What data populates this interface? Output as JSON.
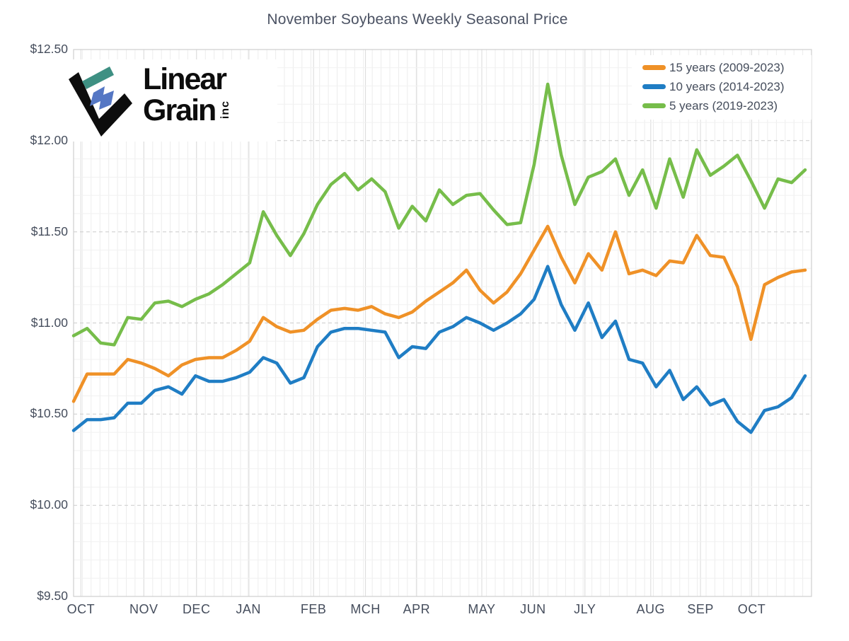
{
  "title": "November Soybeans Weekly Seasonal Price",
  "logo": {
    "word1": "Linear",
    "word2": "Grain",
    "suffix": "inc"
  },
  "colors": {
    "text": "#454d5c",
    "grid_minor_v": "#ececec",
    "grid_month_v": "#dadada",
    "grid_minor_h": "#f1f1f1",
    "grid_major_h": "#cccccc",
    "plot_border": "#cfcfcf",
    "logo_black": "#0d0d0d",
    "logo_teal": "#3e9083",
    "logo_blue": "#5577c4"
  },
  "legend": {
    "items": [
      {
        "label": "15 years (2009-2023)",
        "color": "#ef9127"
      },
      {
        "label": "10 years (2014-2023)",
        "color": "#1f7dc4"
      },
      {
        "label": "5 years (2019-2023)",
        "color": "#76bd4a"
      }
    ]
  },
  "chart_data": {
    "type": "line",
    "title": "November Soybeans Weekly Seasonal Price",
    "x_unit": "week",
    "n_points": 55,
    "ylim": [
      9.5,
      12.5
    ],
    "minor_y_step": 0.1,
    "grid": true,
    "legend_position": "top-right",
    "y_ticks": [
      {
        "label": "$12.50",
        "value": 12.5
      },
      {
        "label": "$12.00",
        "value": 12.0
      },
      {
        "label": "$11.50",
        "value": 11.5
      },
      {
        "label": "$11.00",
        "value": 11.0
      },
      {
        "label": "$10.50",
        "value": 10.5
      },
      {
        "label": "$10.00",
        "value": 10.0
      },
      {
        "label": "$9.50",
        "value": 9.5
      }
    ],
    "x_ticks": [
      {
        "label": "OCT",
        "pos": 0.01
      },
      {
        "label": "NOV",
        "pos": 0.096
      },
      {
        "label": "DEC",
        "pos": 0.168
      },
      {
        "label": "JAN",
        "pos": 0.239
      },
      {
        "label": "FEB",
        "pos": 0.328
      },
      {
        "label": "MCH",
        "pos": 0.399
      },
      {
        "label": "APR",
        "pos": 0.469
      },
      {
        "label": "MAY",
        "pos": 0.558
      },
      {
        "label": "JUN",
        "pos": 0.628
      },
      {
        "label": "JLY",
        "pos": 0.699
      },
      {
        "label": "AUG",
        "pos": 0.789
      },
      {
        "label": "SEP",
        "pos": 0.857
      },
      {
        "label": "OCT",
        "pos": 0.927
      }
    ],
    "series": [
      {
        "name": "15 years (2009-2023)",
        "color": "#ef9127",
        "values": [
          10.57,
          10.72,
          10.72,
          10.72,
          10.8,
          10.78,
          10.75,
          10.71,
          10.77,
          10.8,
          10.81,
          10.81,
          10.85,
          10.9,
          11.03,
          10.98,
          10.95,
          10.96,
          11.02,
          11.07,
          11.08,
          11.07,
          11.09,
          11.05,
          11.03,
          11.06,
          11.12,
          11.17,
          11.22,
          11.29,
          11.18,
          11.11,
          11.17,
          11.27,
          11.4,
          11.53,
          11.36,
          11.22,
          11.38,
          11.29,
          11.5,
          11.27,
          11.29,
          11.26,
          11.34,
          11.33,
          11.48,
          11.37,
          11.36,
          11.2,
          10.91,
          11.21,
          11.25,
          11.28,
          11.29
        ]
      },
      {
        "name": "10 years (2014-2023)",
        "color": "#1f7dc4",
        "values": [
          10.41,
          10.47,
          10.47,
          10.48,
          10.56,
          10.56,
          10.63,
          10.65,
          10.61,
          10.71,
          10.68,
          10.68,
          10.7,
          10.73,
          10.81,
          10.78,
          10.67,
          10.7,
          10.87,
          10.95,
          10.97,
          10.97,
          10.96,
          10.95,
          10.81,
          10.87,
          10.86,
          10.95,
          10.98,
          11.03,
          11.0,
          10.96,
          11.0,
          11.05,
          11.13,
          11.31,
          11.1,
          10.96,
          11.11,
          10.92,
          11.01,
          10.8,
          10.78,
          10.65,
          10.74,
          10.58,
          10.65,
          10.55,
          10.58,
          10.46,
          10.4,
          10.52,
          10.54,
          10.59,
          10.71
        ]
      },
      {
        "name": "5 years (2019-2023)",
        "color": "#76bd4a",
        "values": [
          10.93,
          10.97,
          10.89,
          10.88,
          11.03,
          11.02,
          11.11,
          11.12,
          11.09,
          11.13,
          11.16,
          11.21,
          11.27,
          11.33,
          11.61,
          11.48,
          11.37,
          11.49,
          11.65,
          11.76,
          11.82,
          11.73,
          11.79,
          11.72,
          11.52,
          11.64,
          11.56,
          11.73,
          11.65,
          11.7,
          11.71,
          11.62,
          11.54,
          11.55,
          11.87,
          12.31,
          11.92,
          11.65,
          11.8,
          11.83,
          11.9,
          11.7,
          11.84,
          11.63,
          11.9,
          11.69,
          11.95,
          11.81,
          11.86,
          11.92,
          11.78,
          11.63,
          11.79,
          11.77,
          11.84
        ]
      }
    ]
  }
}
